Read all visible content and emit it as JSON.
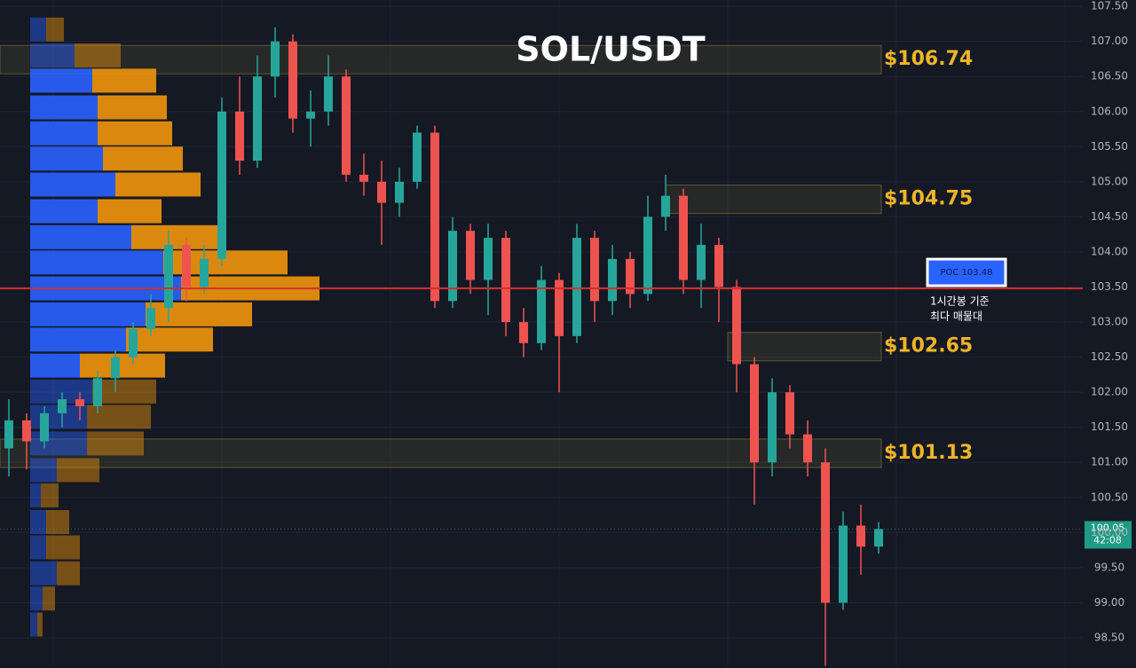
{
  "chart_data": {
    "type": "candlestick",
    "title": "SOL/USDT",
    "ylim": [
      98.07,
      107.59
    ],
    "yticks": [
      {
        "value": 98.5,
        "label": "98.50"
      },
      {
        "value": 99,
        "label": "99.00"
      },
      {
        "value": 99.5,
        "label": "99.50"
      },
      {
        "value": 100,
        "label": "100.00"
      },
      {
        "value": 100.5,
        "label": "100.50"
      },
      {
        "value": 101,
        "label": "101.00"
      },
      {
        "value": 101.5,
        "label": "101.50"
      },
      {
        "value": 102,
        "label": "102.00"
      },
      {
        "value": 102.5,
        "label": "102.50"
      },
      {
        "value": 103,
        "label": "103.00"
      },
      {
        "value": 103.5,
        "label": "103.50"
      },
      {
        "value": 104,
        "label": "104.00"
      },
      {
        "value": 104.5,
        "label": "104.50"
      },
      {
        "value": 105,
        "label": "105.00"
      },
      {
        "value": 105.5,
        "label": "105.50"
      },
      {
        "value": 106,
        "label": "106.00"
      },
      {
        "value": 106.5,
        "label": "106.50"
      },
      {
        "value": 107,
        "label": "107.00"
      },
      {
        "value": 107.5,
        "label": "107.50"
      }
    ],
    "grid": true,
    "up_color": "#26a69a",
    "down_color": "#ef5350",
    "open": [
      101.2,
      101.6,
      101.3,
      101.7,
      101.9,
      101.8,
      102.2,
      102.5,
      102.9,
      103.2,
      104.1,
      103.5,
      103.9,
      106.0,
      105.3,
      106.5,
      107.0,
      105.9,
      106.0,
      106.5,
      105.1,
      105.0,
      104.7,
      105.0,
      105.7,
      103.3,
      104.3,
      103.6,
      104.2,
      103.0,
      102.7,
      103.6,
      102.8,
      104.2,
      103.3,
      103.9,
      103.4,
      104.5,
      104.8,
      103.6,
      104.1,
      103.5,
      102.4,
      101.0,
      102.0,
      101.4,
      101.0,
      99.0,
      100.1,
      99.8
    ],
    "high": [
      101.9,
      101.7,
      101.8,
      102.0,
      102.0,
      102.3,
      102.6,
      103.0,
      103.4,
      104.3,
      104.2,
      104.1,
      106.2,
      106.5,
      106.8,
      107.2,
      107.1,
      106.3,
      106.8,
      106.6,
      105.4,
      105.3,
      105.2,
      105.8,
      105.8,
      104.5,
      104.4,
      104.4,
      104.3,
      103.2,
      103.8,
      103.7,
      104.4,
      104.3,
      104.1,
      104.0,
      104.8,
      105.1,
      104.9,
      104.4,
      104.2,
      103.6,
      102.5,
      102.2,
      102.1,
      101.6,
      101.2,
      100.3,
      100.4,
      100.15
    ],
    "low": [
      100.8,
      100.9,
      101.2,
      101.5,
      101.6,
      101.7,
      102.0,
      102.4,
      102.8,
      103.0,
      103.3,
      103.4,
      103.8,
      105.1,
      105.2,
      106.2,
      105.7,
      105.5,
      105.8,
      105.0,
      104.8,
      104.1,
      104.5,
      104.9,
      103.2,
      103.2,
      103.4,
      103.1,
      102.8,
      102.5,
      102.6,
      102.0,
      102.7,
      103.0,
      103.1,
      103.2,
      103.3,
      104.3,
      103.4,
      103.2,
      103.0,
      102.0,
      100.4,
      100.8,
      101.2,
      100.8,
      98.1,
      98.9,
      99.4,
      99.7
    ],
    "close": [
      101.6,
      101.3,
      101.7,
      101.9,
      101.8,
      102.2,
      102.5,
      102.9,
      103.2,
      104.1,
      103.5,
      103.9,
      106.0,
      105.3,
      106.5,
      107.0,
      105.9,
      106.0,
      106.5,
      105.1,
      105.0,
      104.7,
      105.0,
      105.7,
      103.3,
      104.3,
      103.6,
      104.2,
      103.0,
      102.7,
      103.6,
      102.8,
      104.2,
      103.3,
      103.9,
      103.4,
      104.5,
      104.8,
      103.6,
      104.1,
      103.5,
      102.4,
      101.0,
      102.0,
      101.4,
      101.0,
      99.0,
      100.1,
      99.8,
      100.05
    ],
    "volume_profile": {
      "prices": [
        107.17,
        106.8,
        106.44,
        106.06,
        105.69,
        105.33,
        104.96,
        104.58,
        104.21,
        103.85,
        103.48,
        103.11,
        102.75,
        102.38,
        102.01,
        101.65,
        101.27,
        100.89,
        100.53,
        100.15,
        99.79,
        99.42,
        99.06,
        98.69
      ],
      "buy": [
        18,
        50,
        70,
        76,
        76,
        82,
        96,
        76,
        114,
        150,
        170,
        130,
        108,
        56,
        70,
        64,
        64,
        30,
        12,
        18,
        18,
        30,
        14,
        8
      ],
      "sell": [
        20,
        52,
        72,
        78,
        84,
        90,
        96,
        72,
        104,
        140,
        156,
        120,
        98,
        96,
        72,
        72,
        64,
        48,
        20,
        26,
        38,
        26,
        14,
        6
      ]
    },
    "zones": [
      {
        "value": 106.74,
        "label": "$106.74"
      },
      {
        "value": 104.75,
        "label": "$104.75"
      },
      {
        "value": 102.65,
        "label": "$102.65"
      },
      {
        "value": 101.13,
        "label": "$101.13"
      }
    ],
    "poc": {
      "value": 103.48,
      "label": "POC 103.48",
      "note": [
        "1시간봉 기준",
        "최다 매물대"
      ]
    },
    "last_price": {
      "value": 100.05,
      "label": "100.05",
      "countdown": "42:08"
    }
  }
}
